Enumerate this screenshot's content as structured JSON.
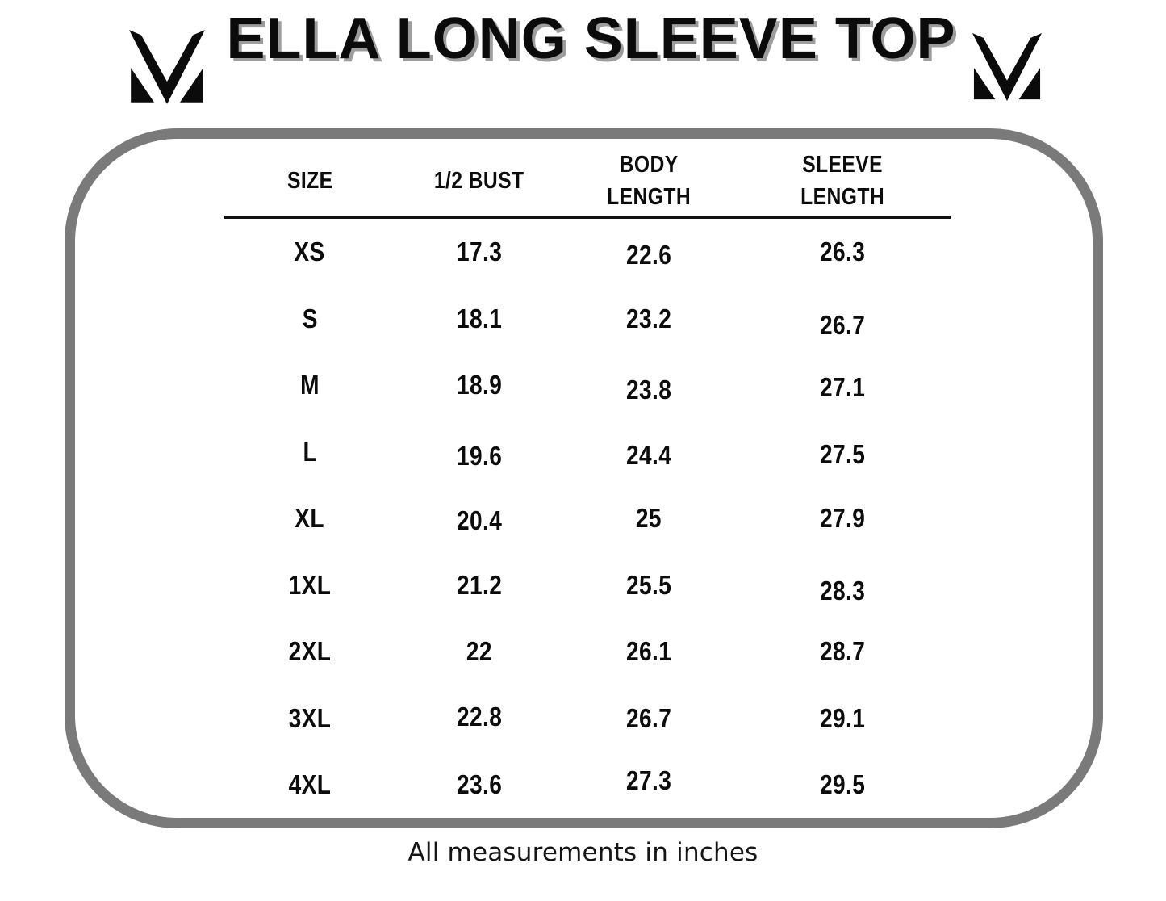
{
  "header": {
    "title": "ELLA LONG SLEEVE TOP",
    "left_logo_icon": "mv-monogram-icon",
    "right_logo_icon": "mv-monogram-icon"
  },
  "size_chart": {
    "columns": [
      "SIZE",
      "1/2 BUST",
      "BODY\nLENGTH",
      "SLEEVE\nLENGTH"
    ],
    "rows": [
      {
        "size": "XS",
        "half_bust": "17.3",
        "body_length": "22.6",
        "sleeve_length": "26.3"
      },
      {
        "size": "S",
        "half_bust": "18.1",
        "body_length": "23.2",
        "sleeve_length": "26.7"
      },
      {
        "size": "M",
        "half_bust": "18.9",
        "body_length": "23.8",
        "sleeve_length": "27.1"
      },
      {
        "size": "L",
        "half_bust": "19.6",
        "body_length": "24.4",
        "sleeve_length": "27.5"
      },
      {
        "size": "XL",
        "half_bust": "20.4",
        "body_length": "25",
        "sleeve_length": "27.9"
      },
      {
        "size": "1XL",
        "half_bust": "21.2",
        "body_length": "25.5",
        "sleeve_length": "28.3"
      },
      {
        "size": "2XL",
        "half_bust": "22",
        "body_length": "26.1",
        "sleeve_length": "28.7"
      },
      {
        "size": "3XL",
        "half_bust": "22.8",
        "body_length": "26.7",
        "sleeve_length": "29.1"
      },
      {
        "size": "4XL",
        "half_bust": "23.6",
        "body_length": "27.3",
        "sleeve_length": "29.5"
      }
    ],
    "footnote": "All measurements in inches"
  },
  "colors": {
    "text": "#0c0c0c",
    "panel_border": "#7a7a7a",
    "title_shadow": "#9d9d9d",
    "header_divider": "#111111"
  },
  "chart_data": {
    "type": "table",
    "title": "ELLA LONG SLEEVE TOP",
    "columns": [
      "SIZE",
      "1/2 BUST",
      "BODY LENGTH",
      "SLEEVE LENGTH"
    ],
    "rows": [
      [
        "XS",
        17.3,
        22.6,
        26.3
      ],
      [
        "S",
        18.1,
        23.2,
        26.7
      ],
      [
        "M",
        18.9,
        23.8,
        27.1
      ],
      [
        "L",
        19.6,
        24.4,
        27.5
      ],
      [
        "XL",
        20.4,
        25,
        27.9
      ],
      [
        "1XL",
        21.2,
        25.5,
        28.3
      ],
      [
        "2XL",
        22,
        26.1,
        28.7
      ],
      [
        "3XL",
        22.8,
        26.7,
        29.1
      ],
      [
        "4XL",
        23.6,
        27.3,
        29.5
      ]
    ],
    "note": "All measurements in inches",
    "units": "inches"
  }
}
